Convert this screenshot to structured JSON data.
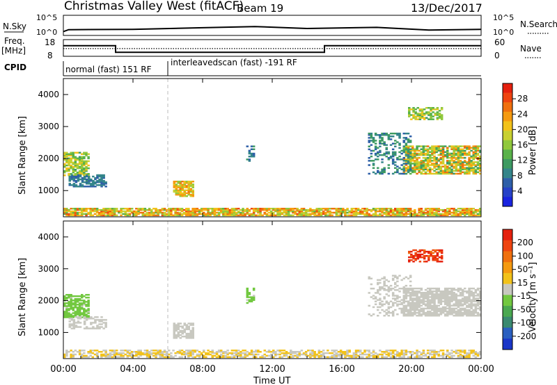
{
  "header": {
    "station": "Christmas Valley West (fitACF)",
    "beam": "Beam 19",
    "date": "13/Dec/2017"
  },
  "control_panels": {
    "nsky_label": "N.Sky",
    "nsearch_label": "N.Search",
    "nsky_ticks": [
      "10^5",
      "10^0"
    ],
    "nsearch_ticks": [
      "10^5",
      "10^0"
    ],
    "freq_label": "Freq.",
    "freq_unit": "[MHz]",
    "freq_ticks": [
      "18",
      "8"
    ],
    "nave_label": "Nave",
    "nave_ticks": [
      "60",
      "0"
    ],
    "cpid_label": "CPID",
    "cpid_segments": [
      {
        "label": "normal (fast) 151 RF",
        "start_hour": 0,
        "end_hour": 6
      },
      {
        "label": "interleavedscan (fast) -191 RF",
        "start_hour": 6,
        "end_hour": 24
      }
    ]
  },
  "colorbars": {
    "power": {
      "label": "Power [dB]",
      "ticks": [
        "28",
        "24",
        "20",
        "16",
        "12",
        "8",
        "4"
      ],
      "colors": [
        "#1a24e0",
        "#2742c8",
        "#2e5fa8",
        "#34858a",
        "#3d9a62",
        "#59b24a",
        "#90c83c",
        "#c8d030",
        "#f2c21a",
        "#f59a10",
        "#f0700e",
        "#ee4410",
        "#e5200e"
      ]
    },
    "velocity": {
      "label": "Velocity [m s⁻¹]",
      "ticks": [
        "200",
        "100",
        "50",
        "15",
        "-15",
        "-50",
        "-100",
        "-200"
      ],
      "colors": [
        "#1a36c8",
        "#2a5fc0",
        "#3a8a70",
        "#4aa850",
        "#72c840",
        "#c8c8c0",
        "#f2c21a",
        "#f59a10",
        "#f0700e",
        "#ee4410",
        "#e5200e"
      ]
    }
  },
  "axes": {
    "ylabel": "Slant Range [km]",
    "xlabel": "Time UT",
    "xticks": [
      "00:00",
      "04:00",
      "08:00",
      "12:00",
      "16:00",
      "20:00",
      "00:00"
    ],
    "yticks": [
      "1000",
      "2000",
      "3000",
      "4000"
    ]
  },
  "chart_data": [
    {
      "type": "line",
      "title": "N.Sky / N.Search",
      "x": [
        0,
        0.3,
        4,
        8,
        11,
        14,
        18,
        21,
        24
      ],
      "series": [
        {
          "values": [
            0.8,
            1.3,
            1.4,
            1.8,
            2.1,
            1.6,
            1.9,
            1.2,
            1.4
          ]
        }
      ],
      "ylim": [
        0,
        5
      ]
    },
    {
      "type": "line",
      "title": "Freq. / Nave",
      "x": [
        0,
        3,
        3,
        15,
        15,
        24
      ],
      "series": [
        {
          "values": [
            14.5,
            14.5,
            10.2,
            10.2,
            14.5,
            14.5
          ]
        },
        {
          "values": [
            12.6,
            12.6,
            12.6,
            12.6,
            12.6,
            12.6
          ]
        }
      ],
      "ylim": [
        8,
        18
      ]
    },
    {
      "type": "heatmap",
      "title": "Power [dB]",
      "xlim": [
        0,
        24
      ],
      "ylim": [
        180,
        4500
      ],
      "regions": [
        {
          "t0": 0,
          "t1": 24,
          "r0": 200,
          "r1": 450,
          "v0": 14,
          "v1": 28,
          "density": 0.8
        },
        {
          "t0": 0,
          "t1": 1.5,
          "r0": 1450,
          "r1": 2200,
          "v0": 12,
          "v1": 22,
          "density": 0.7
        },
        {
          "t0": 0.3,
          "t1": 2.5,
          "r0": 1100,
          "r1": 1500,
          "v0": 6,
          "v1": 10,
          "density": 0.6
        },
        {
          "t0": 6.3,
          "t1": 7.5,
          "r0": 800,
          "r1": 1300,
          "v0": 16,
          "v1": 26,
          "density": 0.75
        },
        {
          "t0": 19.5,
          "t1": 24,
          "r0": 1500,
          "r1": 2400,
          "v0": 10,
          "v1": 26,
          "density": 0.75
        },
        {
          "t0": 17.5,
          "t1": 20,
          "r0": 1500,
          "r1": 2800,
          "v0": 6,
          "v1": 12,
          "density": 0.35
        },
        {
          "t0": 19.8,
          "t1": 21.8,
          "r0": 3200,
          "r1": 3600,
          "v0": 12,
          "v1": 22,
          "density": 0.6
        },
        {
          "t0": 10.5,
          "t1": 11,
          "r0": 1900,
          "r1": 2400,
          "v0": 6,
          "v1": 12,
          "density": 0.5
        }
      ]
    },
    {
      "type": "heatmap",
      "title": "Velocity [m s⁻¹]",
      "xlim": [
        0,
        24
      ],
      "ylim": [
        180,
        4500
      ],
      "regions": [
        {
          "t0": 0,
          "t1": 24,
          "r0": 200,
          "r1": 450,
          "v0": -60,
          "v1": 20,
          "density": 0.6
        },
        {
          "t0": 0,
          "t1": 1.5,
          "r0": 1450,
          "r1": 2200,
          "v0": 20,
          "v1": 60,
          "density": 0.7
        },
        {
          "t0": 0.3,
          "t1": 2.5,
          "r0": 1100,
          "r1": 1500,
          "v0": 10,
          "v1": 14,
          "density": 0.45
        },
        {
          "t0": 6.3,
          "t1": 7.5,
          "r0": 800,
          "r1": 1300,
          "v0": -10,
          "v1": 10,
          "density": 0.75
        },
        {
          "t0": 19.5,
          "t1": 24,
          "r0": 1500,
          "r1": 2400,
          "v0": -10,
          "v1": 10,
          "density": 0.75
        },
        {
          "t0": 17.5,
          "t1": 20,
          "r0": 1500,
          "r1": 2800,
          "v0": -10,
          "v1": 10,
          "density": 0.35
        },
        {
          "t0": 19.8,
          "t1": 21.8,
          "r0": 3200,
          "r1": 3600,
          "v0": -250,
          "v1": -150,
          "density": 0.6
        },
        {
          "t0": 10.5,
          "t1": 11,
          "r0": 1900,
          "r1": 2400,
          "v0": 20,
          "v1": 40,
          "density": 0.5
        }
      ]
    }
  ]
}
